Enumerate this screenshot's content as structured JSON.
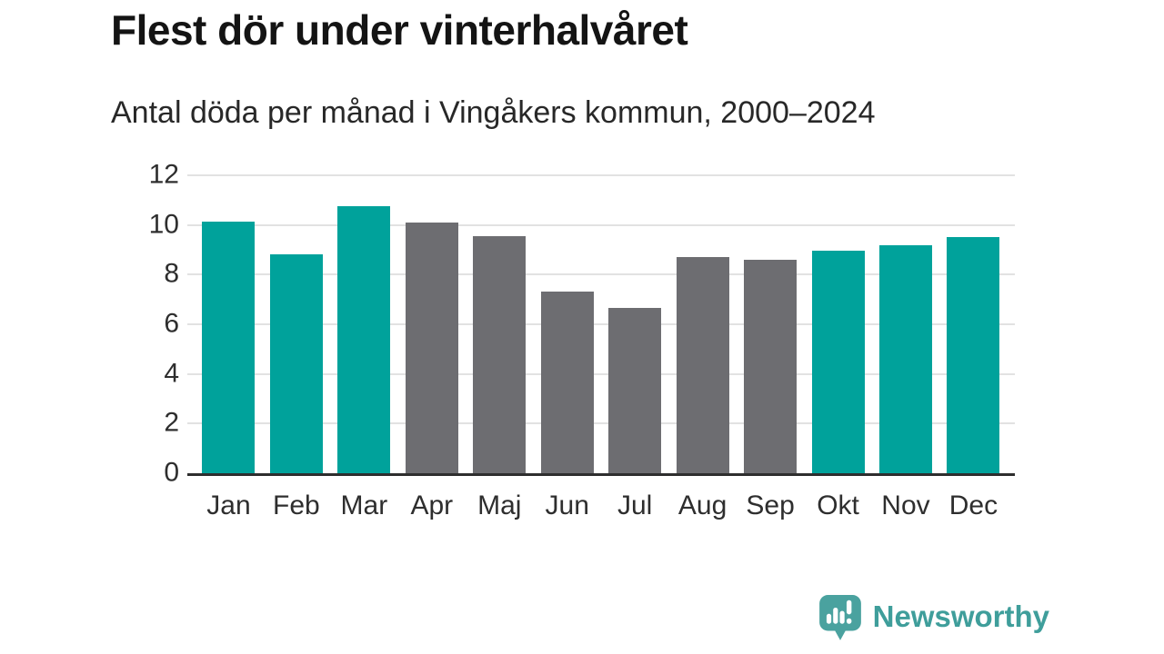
{
  "header": {
    "title": "Flest dör under vinterhalvåret",
    "subtitle": "Antal döda per månad i Vingåkers kommun, 2000–2024"
  },
  "chart_data": {
    "type": "bar",
    "title": "Flest dör under vinterhalvåret",
    "subtitle": "Antal döda per månad i Vingåkers kommun, 2000–2024",
    "categories": [
      "Jan",
      "Feb",
      "Mar",
      "Apr",
      "Maj",
      "Jun",
      "Jul",
      "Aug",
      "Sep",
      "Okt",
      "Nov",
      "Dec"
    ],
    "values": [
      10.15,
      8.8,
      10.75,
      10.1,
      9.55,
      7.3,
      6.65,
      8.7,
      8.6,
      8.95,
      9.2,
      9.5
    ],
    "bar_colors": [
      "teal",
      "teal",
      "teal",
      "gray",
      "gray",
      "gray",
      "gray",
      "gray",
      "gray",
      "teal",
      "teal",
      "teal"
    ],
    "color_map": {
      "teal": "#00a29b",
      "gray": "#6d6d71"
    },
    "xlabel": "",
    "ylabel": "",
    "ylim": [
      0,
      12
    ],
    "yticks": [
      0,
      2,
      4,
      6,
      8,
      10,
      12
    ],
    "grid": true,
    "legend_position": "none",
    "highlight_meaning": "winter-half-year months highlighted in teal"
  },
  "footer": {
    "brand": "Newsworthy",
    "brand_color": "#3f9e9b",
    "logo_icon": "newsworthy-speech-bubble-bar-chart-icon"
  }
}
